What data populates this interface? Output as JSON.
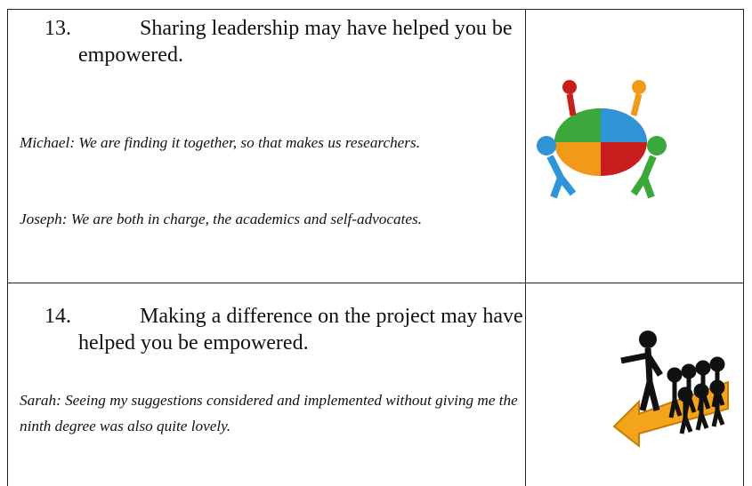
{
  "table": {
    "rows": [
      {
        "number": "13.",
        "heading": "Sharing leadership may have helped you be empowered.",
        "quotes": [
          "Michael: We are finding it together, so that makes us researchers.",
          "Joseph: We are both in charge, the academics and self-advocates."
        ]
      },
      {
        "number": "14.",
        "heading": "Making a difference on the project may have helped you be empowered.",
        "quotes": [
          "Sarah: Seeing my suggestions considered and implemented without giving me the ninth degree was also quite lovely."
        ]
      }
    ]
  }
}
